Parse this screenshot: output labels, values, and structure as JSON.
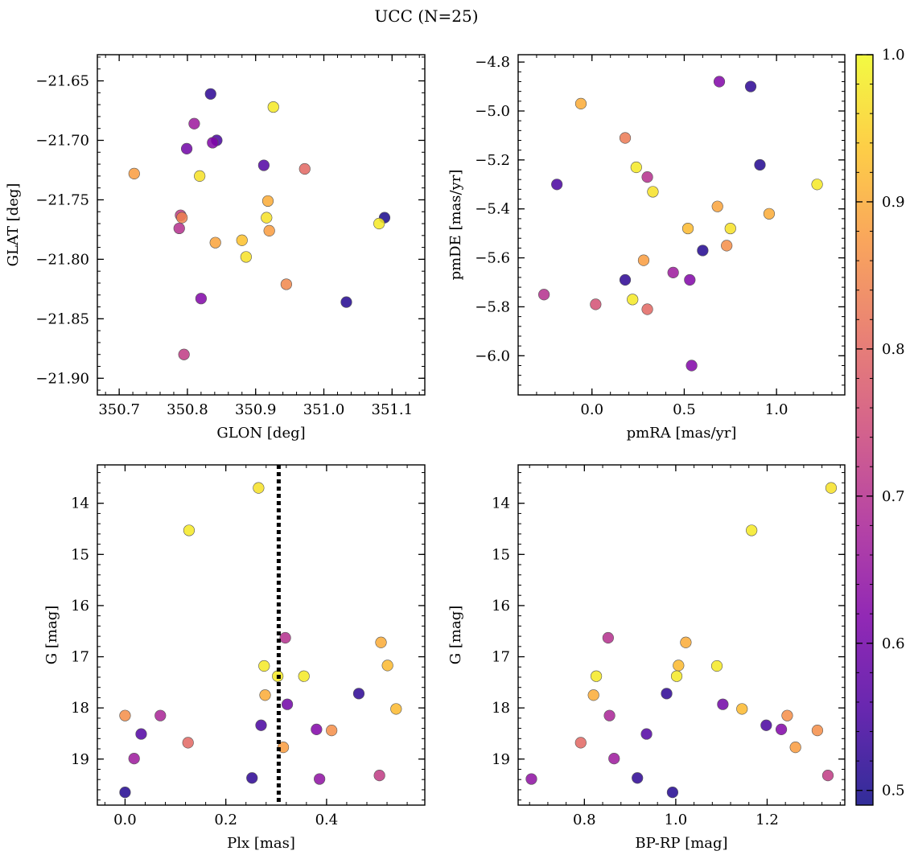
{
  "title": "UCC (N=25)",
  "colorbar": {
    "min": 0.49,
    "max": 1.0,
    "ticks": [
      "0.5",
      "0.6",
      "0.7",
      "0.8",
      "0.9",
      "1.0"
    ],
    "tick_values": [
      0.5,
      0.6,
      0.7,
      0.8,
      0.9,
      1.0
    ],
    "colormap": "plasma"
  },
  "chart_data": [
    {
      "type": "scatter",
      "xlabel": "GLON [deg]",
      "ylabel": "GLAT [deg]",
      "xlim": [
        350.668,
        351.148
      ],
      "ylim": [
        -21.914,
        -21.628
      ],
      "xticks": [
        350.7,
        350.8,
        350.9,
        351.0,
        351.1
      ],
      "xtick_labels": [
        "350.7",
        "350.8",
        "350.9",
        "351.0",
        "351.1"
      ],
      "yticks": [
        -21.65,
        -21.7,
        -21.75,
        -21.8,
        -21.85,
        -21.9
      ],
      "ytick_labels": [
        "−21.65",
        "−21.70",
        "−21.75",
        "−21.80",
        "−21.85",
        "−21.90"
      ],
      "points": [
        {
          "x": 350.834,
          "y": -21.661,
          "c": 0.52
        },
        {
          "x": 350.926,
          "y": -21.672,
          "c": 0.98
        },
        {
          "x": 350.81,
          "y": -21.686,
          "c": 0.66
        },
        {
          "x": 350.843,
          "y": -21.7,
          "c": 0.55
        },
        {
          "x": 350.837,
          "y": -21.702,
          "c": 0.62
        },
        {
          "x": 350.799,
          "y": -21.707,
          "c": 0.6
        },
        {
          "x": 350.912,
          "y": -21.721,
          "c": 0.56
        },
        {
          "x": 350.972,
          "y": -21.724,
          "c": 0.8
        },
        {
          "x": 350.722,
          "y": -21.728,
          "c": 0.88
        },
        {
          "x": 350.818,
          "y": -21.73,
          "c": 0.97
        },
        {
          "x": 350.918,
          "y": -21.751,
          "c": 0.9
        },
        {
          "x": 350.79,
          "y": -21.763,
          "c": 0.72
        },
        {
          "x": 350.792,
          "y": -21.765,
          "c": 0.84
        },
        {
          "x": 350.916,
          "y": -21.765,
          "c": 0.97
        },
        {
          "x": 351.089,
          "y": -21.765,
          "c": 0.5
        },
        {
          "x": 351.081,
          "y": -21.77,
          "c": 0.98
        },
        {
          "x": 350.788,
          "y": -21.774,
          "c": 0.7
        },
        {
          "x": 350.92,
          "y": -21.776,
          "c": 0.88
        },
        {
          "x": 350.88,
          "y": -21.784,
          "c": 0.93
        },
        {
          "x": 350.841,
          "y": -21.786,
          "c": 0.89
        },
        {
          "x": 350.886,
          "y": -21.798,
          "c": 0.97
        },
        {
          "x": 350.945,
          "y": -21.821,
          "c": 0.85
        },
        {
          "x": 350.82,
          "y": -21.833,
          "c": 0.62
        },
        {
          "x": 351.033,
          "y": -21.836,
          "c": 0.51
        },
        {
          "x": 350.795,
          "y": -21.88,
          "c": 0.72
        }
      ]
    },
    {
      "type": "scatter",
      "xlabel": "pmRA [mas/yr]",
      "ylabel": "pmDE [mas/yr]",
      "xlim": [
        -0.4,
        1.37
      ],
      "ylim": [
        -6.16,
        -4.77
      ],
      "xticks": [
        0.0,
        0.5,
        1.0
      ],
      "xtick_labels": [
        "0.0",
        "0.5",
        "1.0"
      ],
      "yticks": [
        -4.8,
        -5.0,
        -5.2,
        -5.4,
        -5.6,
        -5.8,
        -6.0
      ],
      "ytick_labels": [
        "−4.8",
        "−5.0",
        "−5.2",
        "−5.4",
        "−5.6",
        "−5.8",
        "−6.0"
      ],
      "points": [
        {
          "x": 0.69,
          "y": -4.88,
          "c": 0.62
        },
        {
          "x": 0.86,
          "y": -4.9,
          "c": 0.52
        },
        {
          "x": -0.06,
          "y": -4.97,
          "c": 0.9
        },
        {
          "x": 0.18,
          "y": -5.11,
          "c": 0.83
        },
        {
          "x": 0.91,
          "y": -5.22,
          "c": 0.51
        },
        {
          "x": 0.24,
          "y": -5.23,
          "c": 0.98
        },
        {
          "x": 0.3,
          "y": -5.27,
          "c": 0.7
        },
        {
          "x": -0.19,
          "y": -5.3,
          "c": 0.55
        },
        {
          "x": 1.22,
          "y": -5.3,
          "c": 0.98
        },
        {
          "x": 0.33,
          "y": -5.33,
          "c": 0.97
        },
        {
          "x": 0.68,
          "y": -5.39,
          "c": 0.89
        },
        {
          "x": 0.96,
          "y": -5.42,
          "c": 0.9
        },
        {
          "x": 0.52,
          "y": -5.48,
          "c": 0.92
        },
        {
          "x": 0.75,
          "y": -5.48,
          "c": 0.97
        },
        {
          "x": 0.73,
          "y": -5.55,
          "c": 0.86
        },
        {
          "x": 0.6,
          "y": -5.57,
          "c": 0.51
        },
        {
          "x": 0.28,
          "y": -5.61,
          "c": 0.88
        },
        {
          "x": 0.44,
          "y": -5.66,
          "c": 0.66
        },
        {
          "x": 0.18,
          "y": -5.69,
          "c": 0.52
        },
        {
          "x": 0.53,
          "y": -5.69,
          "c": 0.62
        },
        {
          "x": -0.26,
          "y": -5.75,
          "c": 0.7
        },
        {
          "x": 0.22,
          "y": -5.77,
          "c": 0.98
        },
        {
          "x": 0.02,
          "y": -5.79,
          "c": 0.76
        },
        {
          "x": 0.3,
          "y": -5.81,
          "c": 0.8
        },
        {
          "x": 0.54,
          "y": -6.04,
          "c": 0.62
        }
      ]
    },
    {
      "type": "scatter",
      "xlabel": "Plx [mas]",
      "ylabel": "G [mag]",
      "xlim": [
        -0.055,
        0.595
      ],
      "ylim": [
        19.9,
        13.25
      ],
      "xticks": [
        0.0,
        0.2,
        0.4
      ],
      "xtick_labels": [
        "0.0",
        "0.2",
        "0.4"
      ],
      "yticks": [
        14,
        15,
        16,
        17,
        18,
        19
      ],
      "ytick_labels": [
        "14",
        "15",
        "16",
        "17",
        "18",
        "19"
      ],
      "vline": 0.305,
      "points": [
        {
          "x": 0.265,
          "y": 13.7,
          "c": 0.97
        },
        {
          "x": 0.127,
          "y": 14.53,
          "c": 0.98
        },
        {
          "x": 0.318,
          "y": 16.63,
          "c": 0.7
        },
        {
          "x": 0.508,
          "y": 16.72,
          "c": 0.9
        },
        {
          "x": 0.521,
          "y": 17.17,
          "c": 0.92
        },
        {
          "x": 0.276,
          "y": 17.18,
          "c": 0.98
        },
        {
          "x": 0.303,
          "y": 17.38,
          "c": 0.98
        },
        {
          "x": 0.355,
          "y": 17.38,
          "c": 0.98
        },
        {
          "x": 0.278,
          "y": 17.75,
          "c": 0.9
        },
        {
          "x": 0.464,
          "y": 17.72,
          "c": 0.52
        },
        {
          "x": 0.322,
          "y": 17.93,
          "c": 0.6
        },
        {
          "x": 0.538,
          "y": 18.02,
          "c": 0.92
        },
        {
          "x": 0.0,
          "y": 18.15,
          "c": 0.86
        },
        {
          "x": 0.07,
          "y": 18.15,
          "c": 0.68
        },
        {
          "x": 0.27,
          "y": 18.34,
          "c": 0.55
        },
        {
          "x": 0.38,
          "y": 18.42,
          "c": 0.62
        },
        {
          "x": 0.41,
          "y": 18.44,
          "c": 0.86
        },
        {
          "x": 0.032,
          "y": 18.51,
          "c": 0.56
        },
        {
          "x": 0.125,
          "y": 18.68,
          "c": 0.8
        },
        {
          "x": 0.314,
          "y": 18.77,
          "c": 0.88
        },
        {
          "x": 0.018,
          "y": 18.99,
          "c": 0.66
        },
        {
          "x": 0.252,
          "y": 19.37,
          "c": 0.52
        },
        {
          "x": 0.386,
          "y": 19.39,
          "c": 0.64
        },
        {
          "x": 0.505,
          "y": 19.32,
          "c": 0.72
        },
        {
          "x": 0.0,
          "y": 19.65,
          "c": 0.51
        }
      ]
    },
    {
      "type": "scatter",
      "xlabel": "BP-RP [mag]",
      "ylabel": "G [mag]",
      "xlim": [
        0.655,
        1.37
      ],
      "ylim": [
        19.9,
        13.25
      ],
      "xticks": [
        0.8,
        1.0,
        1.2
      ],
      "xtick_labels": [
        "0.8",
        "1.0",
        "1.2"
      ],
      "yticks": [
        14,
        15,
        16,
        17,
        18,
        19
      ],
      "ytick_labels": [
        "14",
        "15",
        "16",
        "17",
        "18",
        "19"
      ],
      "points": [
        {
          "x": 1.34,
          "y": 13.7,
          "c": 0.97
        },
        {
          "x": 1.166,
          "y": 14.53,
          "c": 0.98
        },
        {
          "x": 0.852,
          "y": 16.63,
          "c": 0.7
        },
        {
          "x": 1.022,
          "y": 16.72,
          "c": 0.9
        },
        {
          "x": 1.006,
          "y": 17.17,
          "c": 0.92
        },
        {
          "x": 1.09,
          "y": 17.18,
          "c": 0.98
        },
        {
          "x": 0.826,
          "y": 17.38,
          "c": 0.98
        },
        {
          "x": 1.002,
          "y": 17.38,
          "c": 0.98
        },
        {
          "x": 0.82,
          "y": 17.75,
          "c": 0.9
        },
        {
          "x": 0.98,
          "y": 17.72,
          "c": 0.52
        },
        {
          "x": 1.103,
          "y": 17.93,
          "c": 0.6
        },
        {
          "x": 1.145,
          "y": 18.02,
          "c": 0.92
        },
        {
          "x": 1.244,
          "y": 18.15,
          "c": 0.86
        },
        {
          "x": 0.855,
          "y": 18.15,
          "c": 0.68
        },
        {
          "x": 1.198,
          "y": 18.34,
          "c": 0.55
        },
        {
          "x": 1.231,
          "y": 18.42,
          "c": 0.62
        },
        {
          "x": 1.31,
          "y": 18.44,
          "c": 0.86
        },
        {
          "x": 0.936,
          "y": 18.51,
          "c": 0.56
        },
        {
          "x": 0.792,
          "y": 18.68,
          "c": 0.8
        },
        {
          "x": 1.262,
          "y": 18.77,
          "c": 0.88
        },
        {
          "x": 0.865,
          "y": 18.99,
          "c": 0.66
        },
        {
          "x": 0.916,
          "y": 19.37,
          "c": 0.52
        },
        {
          "x": 0.684,
          "y": 19.39,
          "c": 0.64
        },
        {
          "x": 1.333,
          "y": 19.32,
          "c": 0.72
        },
        {
          "x": 0.993,
          "y": 19.65,
          "c": 0.51
        }
      ]
    }
  ]
}
